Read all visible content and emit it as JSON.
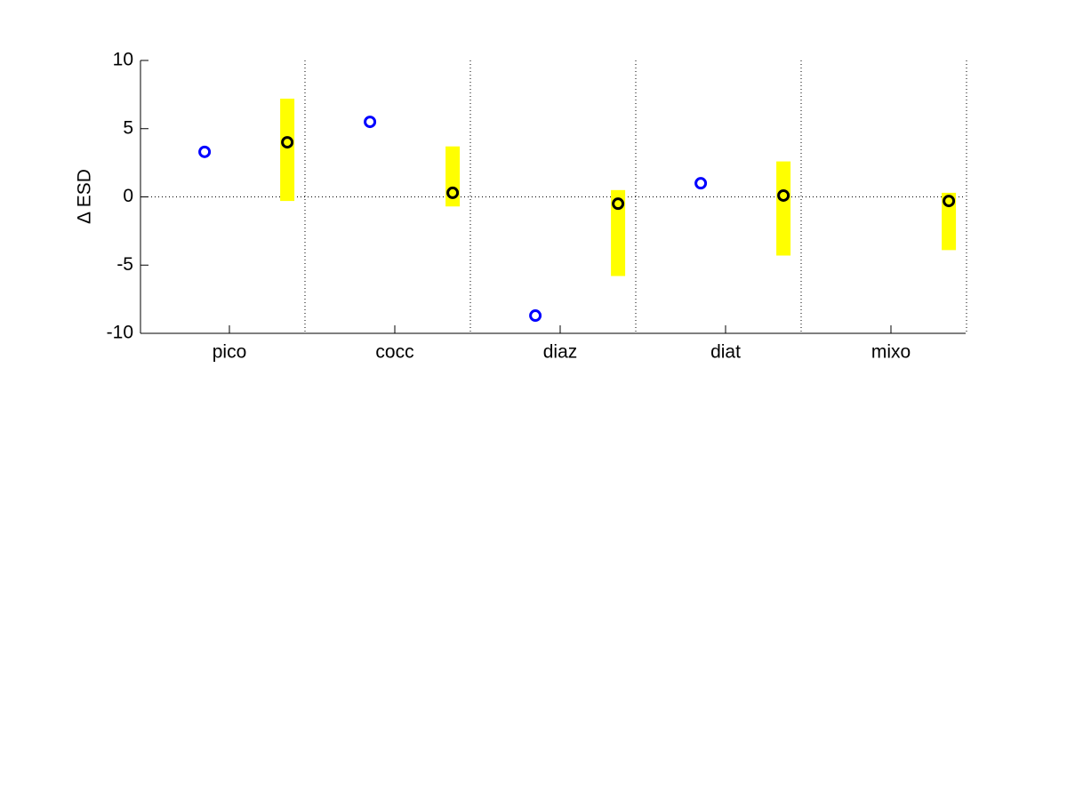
{
  "chart_data": {
    "type": "dot-range",
    "ylabel": "Δ ESD",
    "categories": [
      "pico",
      "cocc",
      "diaz",
      "diat",
      "mixo"
    ],
    "ylim": [
      -10,
      10
    ],
    "yticks": [
      -10,
      -5,
      0,
      5,
      10
    ],
    "series": [
      {
        "color": "#0000ff",
        "values": [
          3.3,
          5.5,
          -8.7,
          1.0,
          null
        ]
      },
      {
        "color": "#000000",
        "values": [
          4.0,
          0.3,
          -0.5,
          0.1,
          -0.3
        ],
        "range_color": "#ffff00",
        "lower": [
          -0.3,
          -0.7,
          -5.8,
          -4.3,
          -3.9
        ],
        "upper": [
          7.2,
          3.7,
          0.5,
          2.6,
          0.3
        ]
      }
    ]
  }
}
